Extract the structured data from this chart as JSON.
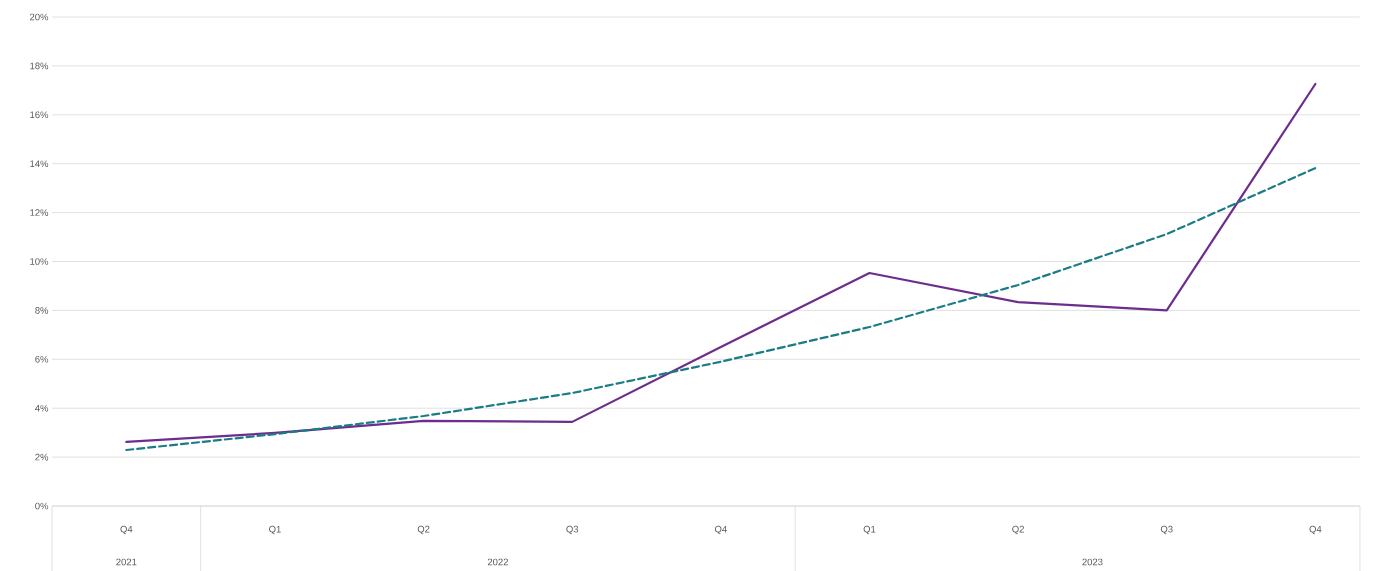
{
  "chart_data": {
    "type": "line",
    "categories": [
      "Q4",
      "Q1",
      "Q2",
      "Q3",
      "Q4",
      "Q1",
      "Q2",
      "Q3",
      "Q4"
    ],
    "series": [
      {
        "color": "#6c2d8e",
        "line_style": "solid",
        "values": [
          2.62,
          2.99,
          3.48,
          3.44,
          6.5,
          9.53,
          8.34,
          8.0,
          17.26
        ]
      },
      {
        "color": "#1a7d85",
        "line_style": "dashed",
        "values": [
          2.29,
          2.94,
          3.68,
          4.62,
          5.9,
          7.32,
          9.04,
          11.12,
          13.82
        ]
      }
    ],
    "ylim": [
      0,
      20
    ],
    "yticks": [
      {
        "value": 0,
        "label": "0%"
      },
      {
        "value": 2,
        "label": "2%"
      },
      {
        "value": 4,
        "label": "4%"
      },
      {
        "value": 6,
        "label": "6%"
      },
      {
        "value": 8,
        "label": "8%"
      },
      {
        "value": 10,
        "label": "10%"
      },
      {
        "value": 12,
        "label": "12%"
      },
      {
        "value": 14,
        "label": "14%"
      },
      {
        "value": 16,
        "label": "16%"
      },
      {
        "value": 18,
        "label": "18%"
      },
      {
        "value": 20,
        "label": "20%"
      }
    ],
    "grid": "y",
    "marker": "none",
    "annotations": [
      "2021",
      "2022",
      "2023"
    ]
  }
}
